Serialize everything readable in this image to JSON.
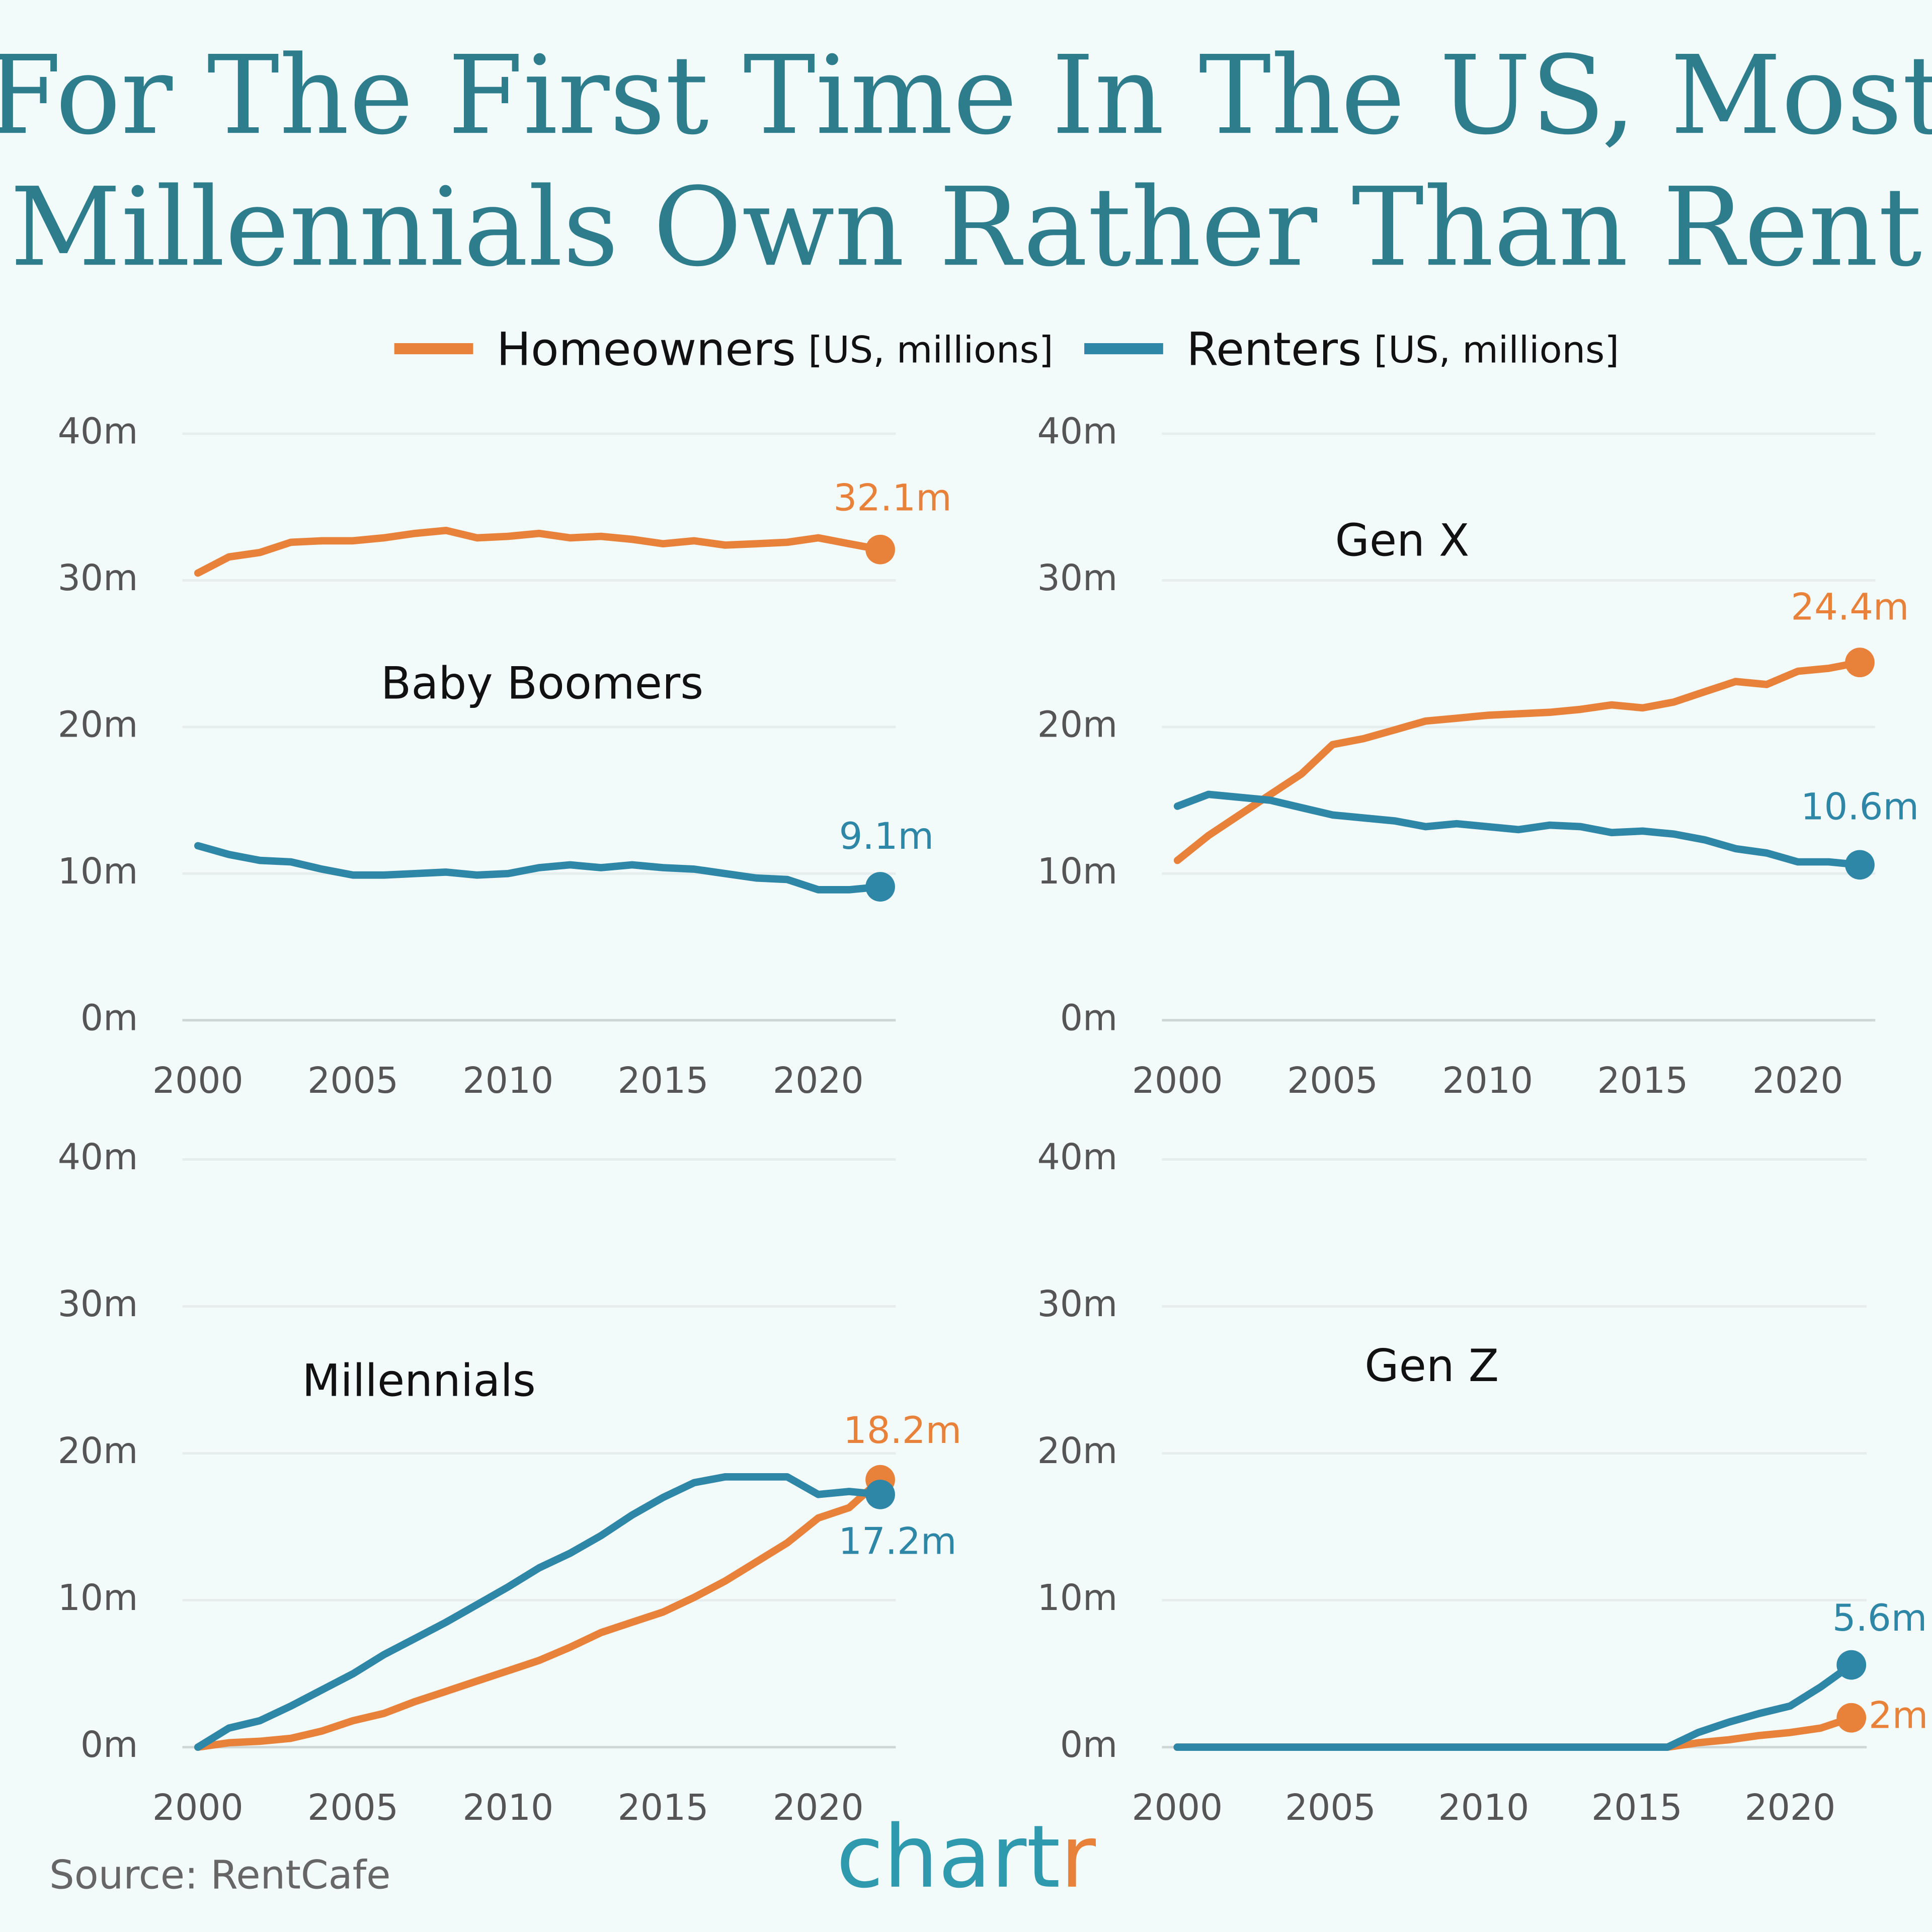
{
  "title": [
    "For The First Time In The US, Most",
    "Millennials Own Rather Than Rent"
  ],
  "legend": [
    {
      "name": "Homeowners",
      "note": "[US, millions]",
      "color": "#e8823a"
    },
    {
      "name": "Renters",
      "note": "[US, millions]",
      "color": "#2f87a8"
    }
  ],
  "source": "Source: RentCafe",
  "logo": {
    "text": "chart",
    "accent": "r"
  },
  "chart_data": [
    {
      "type": "line",
      "title": "Baby Boomers",
      "x": [
        2000,
        2001,
        2002,
        2003,
        2004,
        2005,
        2006,
        2007,
        2008,
        2009,
        2010,
        2011,
        2012,
        2013,
        2014,
        2015,
        2016,
        2017,
        2018,
        2019,
        2020,
        2021,
        2022
      ],
      "xlim": [
        1999.5,
        2022.5
      ],
      "xticks": [
        2000,
        2005,
        2010,
        2015,
        2020
      ],
      "ylim": [
        0,
        40
      ],
      "yticks": [
        {
          "value": 0,
          "label": "0m"
        },
        {
          "value": 10,
          "label": "10m"
        },
        {
          "value": 20,
          "label": "20m"
        },
        {
          "value": 30,
          "label": "30m"
        },
        {
          "value": 40,
          "label": "40m"
        }
      ],
      "grid": true,
      "series": [
        {
          "color": "#e8823a",
          "values": [
            30.5,
            31.6,
            31.9,
            32.6,
            32.7,
            32.7,
            32.9,
            33.2,
            33.4,
            32.9,
            33.0,
            33.2,
            32.9,
            33.0,
            32.8,
            32.5,
            32.7,
            32.4,
            32.5,
            32.6,
            32.9,
            32.5,
            32.1
          ],
          "value_labels": [
            null,
            null,
            null,
            null,
            null,
            null,
            null,
            null,
            null,
            null,
            null,
            null,
            null,
            null,
            null,
            null,
            null,
            null,
            null,
            null,
            null,
            null,
            "32.1m"
          ]
        },
        {
          "color": "#2f87a8",
          "values": [
            11.9,
            11.3,
            10.9,
            10.8,
            10.3,
            9.9,
            9.9,
            10.0,
            10.1,
            9.9,
            10.0,
            10.4,
            10.6,
            10.4,
            10.6,
            10.4,
            10.3,
            10.0,
            9.7,
            9.6,
            8.9,
            8.9,
            9.1
          ],
          "value_labels": [
            null,
            null,
            null,
            null,
            null,
            null,
            null,
            null,
            null,
            null,
            null,
            null,
            null,
            null,
            null,
            null,
            null,
            null,
            null,
            null,
            null,
            null,
            "9.1m"
          ]
        }
      ]
    },
    {
      "type": "line",
      "title": "Gen X",
      "x": [
        2000,
        2001,
        2002,
        2003,
        2004,
        2005,
        2006,
        2007,
        2008,
        2009,
        2010,
        2011,
        2012,
        2013,
        2014,
        2015,
        2016,
        2017,
        2018,
        2019,
        2020,
        2021,
        2022
      ],
      "xlim": [
        1999.5,
        2022.5
      ],
      "xticks": [
        2000,
        2005,
        2010,
        2015,
        2020
      ],
      "ylim": [
        0,
        40
      ],
      "yticks": [
        {
          "value": 0,
          "label": "0m"
        },
        {
          "value": 10,
          "label": "10m"
        },
        {
          "value": 20,
          "label": "20m"
        },
        {
          "value": 30,
          "label": "30m"
        },
        {
          "value": 40,
          "label": "40m"
        }
      ],
      "grid": true,
      "series": [
        {
          "color": "#e8823a",
          "values": [
            10.9,
            12.6,
            14.0,
            15.4,
            16.8,
            18.8,
            19.2,
            19.8,
            20.4,
            20.6,
            20.8,
            20.9,
            21.0,
            21.2,
            21.5,
            21.3,
            21.7,
            22.4,
            23.1,
            22.9,
            23.8,
            24.0,
            24.4
          ],
          "value_labels": [
            null,
            null,
            null,
            null,
            null,
            null,
            null,
            null,
            null,
            null,
            null,
            null,
            null,
            null,
            null,
            null,
            null,
            null,
            null,
            null,
            null,
            null,
            "24.4m"
          ]
        },
        {
          "color": "#2f87a8",
          "values": [
            14.6,
            15.4,
            15.2,
            15.0,
            14.5,
            14.0,
            13.8,
            13.6,
            13.2,
            13.4,
            13.2,
            13.0,
            13.3,
            13.2,
            12.8,
            12.9,
            12.7,
            12.3,
            11.7,
            11.4,
            10.8,
            10.8,
            10.6
          ],
          "value_labels": [
            null,
            null,
            null,
            null,
            null,
            null,
            null,
            null,
            null,
            null,
            null,
            null,
            null,
            null,
            null,
            null,
            null,
            null,
            null,
            null,
            null,
            null,
            "10.6m"
          ]
        }
      ]
    },
    {
      "type": "line",
      "title": "Millennials",
      "x": [
        2000,
        2001,
        2002,
        2003,
        2004,
        2005,
        2006,
        2007,
        2008,
        2009,
        2010,
        2011,
        2012,
        2013,
        2014,
        2015,
        2016,
        2017,
        2018,
        2019,
        2020,
        2021,
        2022
      ],
      "xlim": [
        1999.5,
        2022.5
      ],
      "xticks": [
        2000,
        2005,
        2010,
        2015,
        2020
      ],
      "ylim": [
        0,
        40
      ],
      "yticks": [
        {
          "value": 0,
          "label": "0m"
        },
        {
          "value": 10,
          "label": "10m"
        },
        {
          "value": 20,
          "label": "20m"
        },
        {
          "value": 30,
          "label": "30m"
        },
        {
          "value": 40,
          "label": "40m"
        }
      ],
      "grid": true,
      "series": [
        {
          "color": "#e8823a",
          "values": [
            0,
            0.3,
            0.4,
            0.6,
            1.1,
            1.8,
            2.3,
            3.1,
            3.8,
            4.5,
            5.2,
            5.9,
            6.8,
            7.8,
            8.5,
            9.2,
            10.2,
            11.3,
            12.6,
            13.9,
            15.6,
            16.3,
            18.2
          ],
          "value_labels": [
            null,
            null,
            null,
            null,
            null,
            null,
            null,
            null,
            null,
            null,
            null,
            null,
            null,
            null,
            null,
            null,
            null,
            null,
            null,
            null,
            null,
            null,
            "18.2m"
          ]
        },
        {
          "color": "#2f87a8",
          "values": [
            0,
            1.3,
            1.8,
            2.8,
            3.9,
            5.0,
            6.3,
            7.4,
            8.5,
            9.7,
            10.9,
            12.2,
            13.2,
            14.4,
            15.8,
            17.0,
            18.0,
            18.4,
            18.4,
            18.4,
            17.2,
            17.4,
            17.2
          ],
          "value_labels": [
            null,
            null,
            null,
            null,
            null,
            null,
            null,
            null,
            null,
            null,
            null,
            null,
            null,
            null,
            null,
            null,
            null,
            null,
            null,
            null,
            null,
            null,
            "17.2m"
          ]
        }
      ]
    },
    {
      "type": "line",
      "title": "Gen Z",
      "x": [
        2000,
        2001,
        2002,
        2003,
        2004,
        2005,
        2006,
        2007,
        2008,
        2009,
        2010,
        2011,
        2012,
        2013,
        2014,
        2015,
        2016,
        2017,
        2018,
        2019,
        2020,
        2021,
        2022
      ],
      "xlim": [
        1999.5,
        2022.5
      ],
      "xticks": [
        2000,
        2005,
        2010,
        2015,
        2020
      ],
      "ylim": [
        0,
        40
      ],
      "yticks": [
        {
          "value": 0,
          "label": "0m"
        },
        {
          "value": 10,
          "label": "10m"
        },
        {
          "value": 20,
          "label": "20m"
        },
        {
          "value": 30,
          "label": "30m"
        },
        {
          "value": 40,
          "label": "40m"
        }
      ],
      "grid": true,
      "series": [
        {
          "color": "#e8823a",
          "values": [
            0,
            0,
            0,
            0,
            0,
            0,
            0,
            0,
            0,
            0,
            0,
            0,
            0,
            0,
            0,
            0,
            0,
            0.3,
            0.5,
            0.8,
            1.0,
            1.3,
            2
          ],
          "value_labels": [
            null,
            null,
            null,
            null,
            null,
            null,
            null,
            null,
            null,
            null,
            null,
            null,
            null,
            null,
            null,
            null,
            null,
            null,
            null,
            null,
            null,
            null,
            "2m"
          ]
        },
        {
          "color": "#2f87a8",
          "values": [
            0,
            0,
            0,
            0,
            0,
            0,
            0,
            0,
            0,
            0,
            0,
            0,
            0,
            0,
            0,
            0,
            0,
            1.0,
            1.7,
            2.3,
            2.8,
            4.1,
            5.6
          ],
          "value_labels": [
            null,
            null,
            null,
            null,
            null,
            null,
            null,
            null,
            null,
            null,
            null,
            null,
            null,
            null,
            null,
            null,
            null,
            null,
            null,
            null,
            null,
            null,
            "5.6m"
          ]
        }
      ]
    }
  ]
}
